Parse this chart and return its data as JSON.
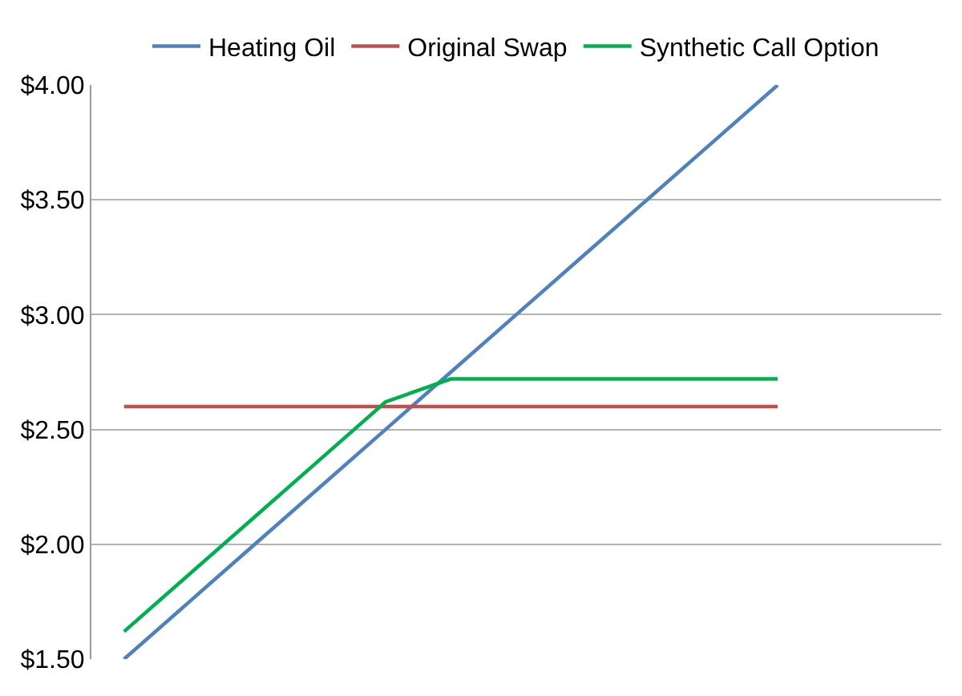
{
  "chart_data": {
    "type": "line",
    "categories": [
      null,
      null,
      null,
      null,
      null,
      null,
      null,
      null,
      null,
      null,
      null,
      null,
      null
    ],
    "series": [
      {
        "name": "Heating Oil",
        "color": "#4f81bd",
        "values": [
          1.5,
          1.75,
          2.0,
          2.25,
          2.5,
          2.75,
          3.0,
          3.25,
          3.5,
          3.75,
          4.0,
          null,
          null
        ]
      },
      {
        "name": "Original Swap",
        "color": "#c0504d",
        "values": [
          2.6,
          2.6,
          2.6,
          2.6,
          2.6,
          2.6,
          2.6,
          2.6,
          2.6,
          2.6,
          2.6,
          null,
          null
        ]
      },
      {
        "name": "Synthetic Call Option",
        "color": "#00b050",
        "values": [
          1.62,
          1.87,
          2.12,
          2.37,
          2.62,
          2.72,
          2.72,
          2.72,
          2.72,
          2.72,
          2.72,
          null,
          null
        ]
      }
    ],
    "ylim": [
      1.5,
      4.0
    ],
    "yticks": [
      {
        "value": 1.5,
        "label": "$1.50"
      },
      {
        "value": 2.0,
        "label": "$2.00"
      },
      {
        "value": 2.5,
        "label": "$2.50"
      },
      {
        "value": 3.0,
        "label": "$3.00"
      },
      {
        "value": 3.5,
        "label": "$3.50"
      },
      {
        "value": 4.0,
        "label": "$4.00"
      }
    ],
    "grid": "y",
    "legend": "top",
    "tick_labels": "y",
    "line_style": "solid"
  }
}
